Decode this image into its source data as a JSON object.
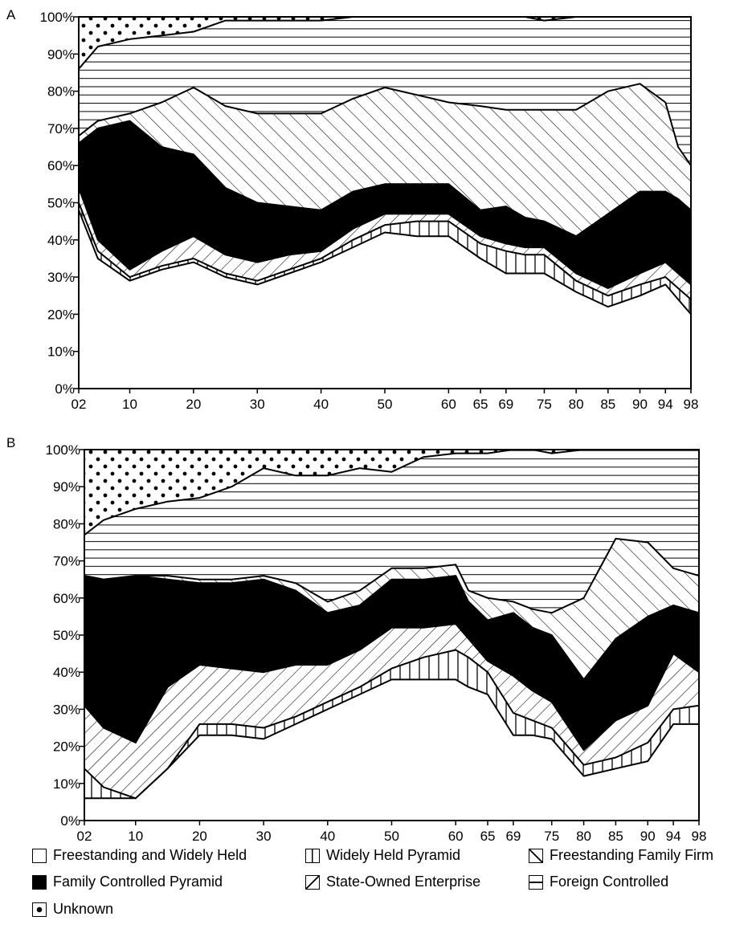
{
  "legend": [
    {
      "key": "freestanding_widely_held",
      "label": "Freestanding and Widely Held",
      "pattern": "blank",
      "color": "#ffffff"
    },
    {
      "key": "widely_held_pyramid",
      "label": "Widely Held Pyramid",
      "pattern": "vertical-lines",
      "color": "#000000"
    },
    {
      "key": "freestanding_family_firm",
      "label": "Freestanding Family Firm",
      "pattern": "diagonal-lines-backslash",
      "color": "#000000"
    },
    {
      "key": "family_controlled_pyramid",
      "label": "Family Controlled Pyramid",
      "pattern": "solid-black",
      "color": "#000000"
    },
    {
      "key": "state_owned_enterprise",
      "label": "State-Owned Enterprise",
      "pattern": "diagonal-lines-slash",
      "color": "#000000"
    },
    {
      "key": "foreign_controlled",
      "label": "Foreign Controlled",
      "pattern": "horizontal-lines",
      "color": "#000000"
    },
    {
      "key": "unknown",
      "label": "Unknown",
      "pattern": "dots",
      "color": "#000000"
    }
  ],
  "chart_data": [
    {
      "panel_label": "A",
      "type": "area",
      "stacked": true,
      "x": [
        2,
        5,
        10,
        15,
        20,
        25,
        30,
        35,
        40,
        45,
        50,
        55,
        60,
        65,
        69,
        72,
        75,
        80,
        85,
        90,
        94,
        96,
        98
      ],
      "tick_labels": [
        "02",
        "10",
        "20",
        "30",
        "40",
        "50",
        "60",
        "65",
        "69",
        "75",
        "80",
        "85",
        "90",
        "94",
        "98"
      ],
      "tick_values": [
        2,
        10,
        20,
        30,
        40,
        50,
        60,
        65,
        69,
        75,
        80,
        85,
        90,
        94,
        98
      ],
      "ylim": [
        0,
        100
      ],
      "yticks": [
        "0%",
        "10%",
        "20%",
        "30%",
        "40%",
        "50%",
        "60%",
        "70%",
        "80%",
        "90%",
        "100%"
      ],
      "grid": false,
      "series": [
        {
          "name": "Freestanding and Widely Held",
          "values": [
            48,
            35,
            29,
            32,
            34,
            30,
            28,
            31,
            34,
            38,
            42,
            41,
            41,
            35,
            31,
            31,
            31,
            26,
            22,
            25,
            28,
            24,
            20
          ]
        },
        {
          "name": "Widely Held Pyramid",
          "values": [
            2,
            2,
            1,
            1,
            1,
            1,
            1,
            1,
            1,
            2,
            2,
            4,
            4,
            4,
            6,
            5,
            5,
            3,
            3,
            3,
            2,
            3,
            4
          ]
        },
        {
          "name": "Freestanding Family Firm",
          "values": [
            4,
            3,
            2,
            4,
            6,
            5,
            5,
            4,
            2,
            3,
            3,
            2,
            2,
            2,
            2,
            2,
            2,
            2,
            2,
            3,
            4,
            4,
            4
          ]
        },
        {
          "name": "Family Controlled Pyramid",
          "values": [
            12,
            30,
            40,
            28,
            22,
            18,
            16,
            13,
            11,
            10,
            8,
            8,
            8,
            7,
            10,
            8,
            7,
            10,
            20,
            22,
            19,
            20,
            20
          ]
        },
        {
          "name": "State-Owned Enterprise",
          "values": [
            2,
            2,
            2,
            12,
            18,
            22,
            24,
            25,
            26,
            25,
            26,
            24,
            22,
            28,
            26,
            29,
            30,
            34,
            33,
            29,
            24,
            14,
            12
          ]
        },
        {
          "name": "Foreign Controlled",
          "values": [
            18,
            20,
            20,
            18,
            15,
            23,
            25,
            25,
            25,
            22,
            19,
            21,
            23,
            24,
            25,
            25,
            24,
            25,
            20,
            18,
            23,
            35,
            40
          ]
        },
        {
          "name": "Unknown",
          "values": [
            14,
            8,
            6,
            5,
            4,
            1,
            1,
            1,
            1,
            0,
            0,
            0,
            0,
            0,
            0,
            0,
            1,
            0,
            0,
            0,
            0,
            0,
            0
          ]
        }
      ]
    },
    {
      "panel_label": "B",
      "type": "area",
      "stacked": true,
      "x": [
        2,
        5,
        10,
        15,
        20,
        25,
        30,
        35,
        40,
        45,
        50,
        55,
        60,
        62,
        65,
        69,
        72,
        75,
        80,
        85,
        90,
        94,
        98
      ],
      "tick_labels": [
        "02",
        "10",
        "20",
        "30",
        "40",
        "50",
        "60",
        "65",
        "69",
        "75",
        "80",
        "85",
        "90",
        "94",
        "98"
      ],
      "tick_values": [
        2,
        10,
        20,
        30,
        40,
        50,
        60,
        65,
        69,
        75,
        80,
        85,
        90,
        94,
        98
      ],
      "ylim": [
        0,
        100
      ],
      "yticks": [
        "0%",
        "10%",
        "20%",
        "30%",
        "40%",
        "50%",
        "60%",
        "70%",
        "80%",
        "90%",
        "100%"
      ],
      "grid": false,
      "series": [
        {
          "name": "Freestanding and Widely Held",
          "values": [
            6,
            6,
            6,
            14,
            23,
            23,
            22,
            26,
            30,
            34,
            38,
            38,
            38,
            36,
            34,
            23,
            23,
            22,
            12,
            14,
            16,
            26,
            26
          ]
        },
        {
          "name": "Widely Held Pyramid",
          "values": [
            8,
            3,
            0,
            0,
            3,
            3,
            3,
            2,
            2,
            2,
            3,
            6,
            8,
            8,
            6,
            6,
            4,
            3,
            3,
            3,
            5,
            4,
            5
          ]
        },
        {
          "name": "Freestanding Family Firm",
          "values": [
            17,
            16,
            15,
            22,
            16,
            15,
            15,
            14,
            10,
            10,
            11,
            8,
            7,
            5,
            3,
            10,
            8,
            7,
            4,
            10,
            10,
            15,
            9
          ]
        },
        {
          "name": "Family Controlled Pyramid",
          "values": [
            35,
            40,
            45,
            29,
            22,
            23,
            25,
            20,
            14,
            12,
            13,
            13,
            13,
            10,
            11,
            17,
            17,
            18,
            19,
            22,
            24,
            13,
            16
          ]
        },
        {
          "name": "State-Owned Enterprise",
          "values": [
            0,
            0,
            0,
            1,
            1,
            1,
            1,
            2,
            3,
            4,
            3,
            3,
            3,
            3,
            6,
            3,
            5,
            6,
            22,
            27,
            20,
            10,
            10
          ]
        },
        {
          "name": "Foreign Controlled",
          "values": [
            11,
            16,
            18,
            20,
            22,
            25,
            29,
            29,
            34,
            33,
            26,
            30,
            30,
            37,
            39,
            41,
            43,
            43,
            40,
            24,
            25,
            32,
            34
          ]
        },
        {
          "name": "Unknown",
          "values": [
            23,
            19,
            16,
            14,
            13,
            10,
            5,
            7,
            7,
            5,
            6,
            2,
            1,
            1,
            1,
            0,
            0,
            1,
            0,
            0,
            0,
            0,
            0
          ]
        }
      ]
    }
  ]
}
